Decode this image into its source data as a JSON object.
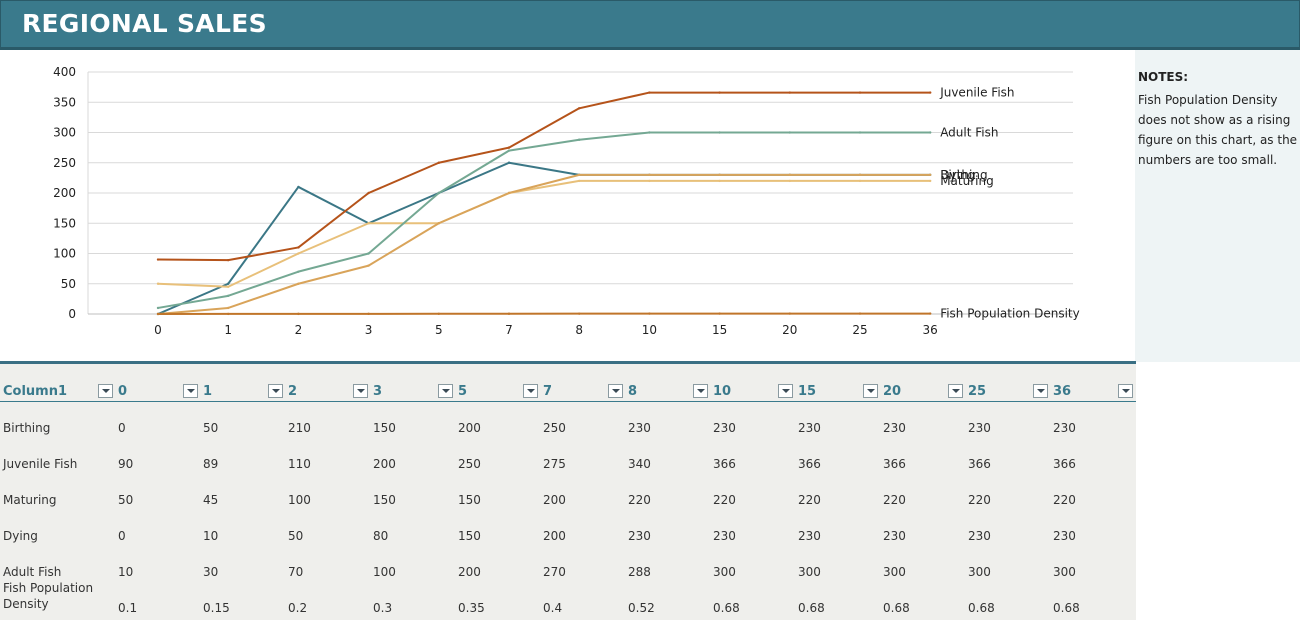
{
  "title": "REGIONAL SALES",
  "notes": {
    "heading": "NOTES:",
    "body": "Fish Population Density does not show as a rising figure on this chart, as the numbers are too small."
  },
  "colors": {
    "header_bg": "#3a7a8c",
    "birthing": "#3b7786",
    "juvenile": "#b5531a",
    "maturing": "#e8c07a",
    "dying": "#d9a45a",
    "adult": "#74a893",
    "density": "#c0752a"
  },
  "chart_data": {
    "type": "line",
    "categories": [
      "0",
      "1",
      "2",
      "3",
      "5",
      "7",
      "8",
      "10",
      "15",
      "20",
      "25",
      "36"
    ],
    "ylim": [
      0,
      400
    ],
    "yticks": [
      0,
      50,
      100,
      150,
      200,
      250,
      300,
      350,
      400
    ],
    "grid": true,
    "legend": "inline-right",
    "series": [
      {
        "name": "Birthing",
        "color_key": "birthing",
        "values": [
          0,
          50,
          210,
          150,
          200,
          250,
          230,
          230,
          230,
          230,
          230,
          230
        ]
      },
      {
        "name": "Juvenile Fish",
        "color_key": "juvenile",
        "values": [
          90,
          89,
          110,
          200,
          250,
          275,
          340,
          366,
          366,
          366,
          366,
          366
        ]
      },
      {
        "name": "Maturing",
        "color_key": "maturing",
        "values": [
          50,
          45,
          100,
          150,
          150,
          200,
          220,
          220,
          220,
          220,
          220,
          220
        ]
      },
      {
        "name": "Dying",
        "color_key": "dying",
        "values": [
          0,
          10,
          50,
          80,
          150,
          200,
          230,
          230,
          230,
          230,
          230,
          230
        ]
      },
      {
        "name": "Adult Fish",
        "color_key": "adult",
        "values": [
          10,
          30,
          70,
          100,
          200,
          270,
          288,
          300,
          300,
          300,
          300,
          300
        ]
      },
      {
        "name": "Fish Population Density",
        "color_key": "density",
        "values": [
          0.1,
          0.15,
          0.2,
          0.3,
          0.35,
          0.4,
          0.52,
          0.68,
          0.68,
          0.68,
          0.68,
          0.68
        ]
      }
    ]
  },
  "table": {
    "first_header": "Column1",
    "headers": [
      "0",
      "1",
      "2",
      "3",
      "5",
      "7",
      "8",
      "10",
      "15",
      "20",
      "25",
      "36"
    ],
    "rows": [
      {
        "label": "Birthing",
        "values": [
          "0",
          "50",
          "210",
          "150",
          "200",
          "250",
          "230",
          "230",
          "230",
          "230",
          "230",
          "230"
        ]
      },
      {
        "label": "Juvenile Fish",
        "values": [
          "90",
          "89",
          "110",
          "200",
          "250",
          "275",
          "340",
          "366",
          "366",
          "366",
          "366",
          "366"
        ]
      },
      {
        "label": "Maturing",
        "values": [
          "50",
          "45",
          "100",
          "150",
          "150",
          "200",
          "220",
          "220",
          "220",
          "220",
          "220",
          "220"
        ]
      },
      {
        "label": "Dying",
        "values": [
          "0",
          "10",
          "50",
          "80",
          "150",
          "200",
          "230",
          "230",
          "230",
          "230",
          "230",
          "230"
        ]
      },
      {
        "label": "Adult Fish",
        "values": [
          "10",
          "30",
          "70",
          "100",
          "200",
          "270",
          "288",
          "300",
          "300",
          "300",
          "300",
          "300"
        ]
      },
      {
        "label": "Fish Population Density",
        "values": [
          "0.1",
          "0.15",
          "0.2",
          "0.3",
          "0.35",
          "0.4",
          "0.52",
          "0.68",
          "0.68",
          "0.68",
          "0.68",
          "0.68"
        ]
      }
    ]
  }
}
